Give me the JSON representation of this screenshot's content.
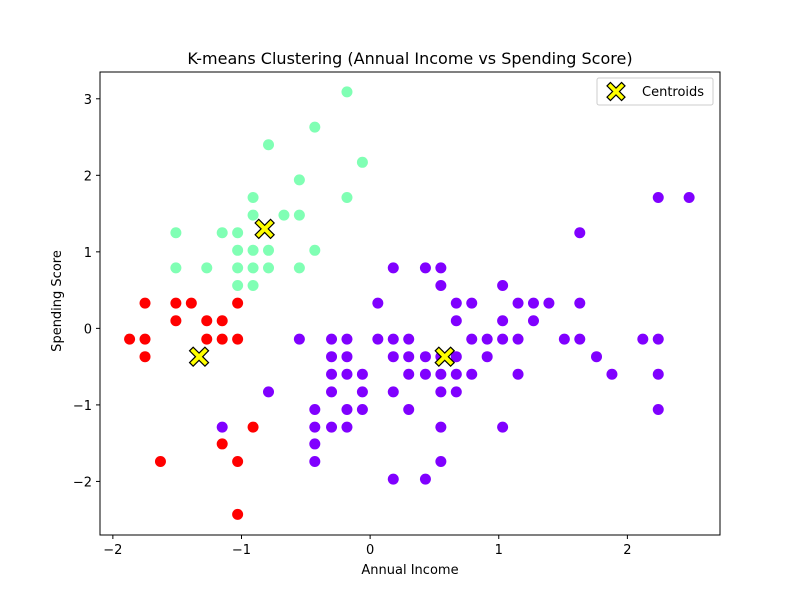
{
  "chart_data": {
    "type": "scatter",
    "title": "K-means Clustering (Annual Income vs Spending Score)",
    "xlabel": "Annual Income",
    "ylabel": "Spending Score",
    "xlim": [
      -2.1,
      2.72
    ],
    "ylim": [
      -2.7,
      3.35
    ],
    "x_ticks": [
      -2,
      -1,
      0,
      1,
      2
    ],
    "y_ticks": [
      -2,
      -1,
      0,
      1,
      2,
      3
    ],
    "x_tick_labels": [
      "−2",
      "−1",
      "0",
      "1",
      "2"
    ],
    "y_tick_labels": [
      "−2",
      "−1",
      "0",
      "1",
      "2",
      "3"
    ],
    "grid": false,
    "legend_position": "top-right",
    "series": [
      {
        "color": "#ff0000",
        "points": [
          [
            -1.87,
            -0.14
          ],
          [
            -1.75,
            0.33
          ],
          [
            -1.75,
            -0.14
          ],
          [
            -1.75,
            -0.37
          ],
          [
            -1.63,
            -1.74
          ],
          [
            -1.51,
            0.33
          ],
          [
            -1.51,
            0.1
          ],
          [
            -1.39,
            0.33
          ],
          [
            -1.27,
            0.1
          ],
          [
            -1.27,
            -0.14
          ],
          [
            -1.15,
            0.1
          ],
          [
            -1.15,
            -0.14
          ],
          [
            -1.15,
            -1.51
          ],
          [
            -1.03,
            0.33
          ],
          [
            -1.03,
            -0.14
          ],
          [
            -1.03,
            -1.74
          ],
          [
            -1.03,
            -2.43
          ],
          [
            -0.91,
            -1.29
          ]
        ]
      },
      {
        "color": "#80ffb4",
        "points": [
          [
            -1.51,
            1.25
          ],
          [
            -1.51,
            0.79
          ],
          [
            -1.27,
            0.79
          ],
          [
            -1.15,
            1.25
          ],
          [
            -1.03,
            1.25
          ],
          [
            -1.03,
            1.02
          ],
          [
            -1.03,
            0.79
          ],
          [
            -1.03,
            0.56
          ],
          [
            -0.91,
            1.71
          ],
          [
            -0.91,
            1.48
          ],
          [
            -0.91,
            1.02
          ],
          [
            -0.91,
            0.79
          ],
          [
            -0.91,
            0.56
          ],
          [
            -0.79,
            2.4
          ],
          [
            -0.79,
            1.02
          ],
          [
            -0.79,
            0.79
          ],
          [
            -0.67,
            1.48
          ],
          [
            -0.55,
            1.94
          ],
          [
            -0.55,
            1.48
          ],
          [
            -0.55,
            0.79
          ],
          [
            -0.43,
            2.63
          ],
          [
            -0.43,
            1.02
          ],
          [
            -0.18,
            3.09
          ],
          [
            -0.18,
            1.71
          ],
          [
            -0.06,
            2.17
          ]
        ]
      },
      {
        "color": "#8000ff",
        "points": [
          [
            -1.15,
            -1.29
          ],
          [
            -0.79,
            -0.83
          ],
          [
            -0.55,
            -0.14
          ],
          [
            -0.43,
            -1.06
          ],
          [
            -0.43,
            -1.29
          ],
          [
            -0.43,
            -1.51
          ],
          [
            -0.43,
            -1.74
          ],
          [
            -0.3,
            -0.14
          ],
          [
            -0.3,
            -0.37
          ],
          [
            -0.3,
            -0.6
          ],
          [
            -0.3,
            -0.83
          ],
          [
            -0.3,
            -1.29
          ],
          [
            -0.18,
            -0.14
          ],
          [
            -0.18,
            -0.37
          ],
          [
            -0.18,
            -0.6
          ],
          [
            -0.18,
            -1.06
          ],
          [
            -0.18,
            -1.29
          ],
          [
            -0.06,
            -0.6
          ],
          [
            -0.06,
            -0.83
          ],
          [
            -0.06,
            -1.06
          ],
          [
            0.06,
            0.33
          ],
          [
            0.06,
            -0.14
          ],
          [
            0.18,
            0.79
          ],
          [
            0.18,
            -0.14
          ],
          [
            0.18,
            -0.37
          ],
          [
            0.18,
            -0.83
          ],
          [
            0.18,
            -1.97
          ],
          [
            0.3,
            -0.14
          ],
          [
            0.3,
            -0.37
          ],
          [
            0.3,
            -0.6
          ],
          [
            0.3,
            -1.06
          ],
          [
            0.43,
            0.79
          ],
          [
            0.43,
            -0.37
          ],
          [
            0.43,
            -0.6
          ],
          [
            0.43,
            -1.97
          ],
          [
            0.55,
            0.79
          ],
          [
            0.55,
            0.56
          ],
          [
            0.55,
            -0.37
          ],
          [
            0.55,
            -0.6
          ],
          [
            0.55,
            -0.83
          ],
          [
            0.55,
            -1.29
          ],
          [
            0.55,
            -1.74
          ],
          [
            0.67,
            0.33
          ],
          [
            0.67,
            0.1
          ],
          [
            0.67,
            -0.37
          ],
          [
            0.67,
            -0.6
          ],
          [
            0.67,
            -0.83
          ],
          [
            0.79,
            0.33
          ],
          [
            0.79,
            -0.14
          ],
          [
            0.79,
            -0.6
          ],
          [
            0.91,
            -0.14
          ],
          [
            0.91,
            -0.37
          ],
          [
            1.03,
            0.56
          ],
          [
            1.03,
            0.1
          ],
          [
            1.03,
            -0.14
          ],
          [
            1.03,
            -1.29
          ],
          [
            1.15,
            0.33
          ],
          [
            1.15,
            -0.14
          ],
          [
            1.15,
            -0.6
          ],
          [
            1.27,
            0.33
          ],
          [
            1.27,
            0.1
          ],
          [
            1.39,
            0.33
          ],
          [
            1.51,
            -0.14
          ],
          [
            1.63,
            1.25
          ],
          [
            1.63,
            0.33
          ],
          [
            1.63,
            -0.14
          ],
          [
            1.76,
            -0.37
          ],
          [
            1.88,
            -0.6
          ],
          [
            2.12,
            -0.14
          ],
          [
            2.24,
            1.71
          ],
          [
            2.24,
            -0.14
          ],
          [
            2.24,
            -0.6
          ],
          [
            2.24,
            -1.06
          ],
          [
            2.48,
            1.71
          ]
        ]
      }
    ],
    "centroids": {
      "name": "Centroids",
      "color": "#ffff00",
      "points": [
        [
          -0.82,
          1.3
        ],
        [
          -1.33,
          -0.37
        ],
        [
          0.58,
          -0.37
        ]
      ]
    }
  }
}
